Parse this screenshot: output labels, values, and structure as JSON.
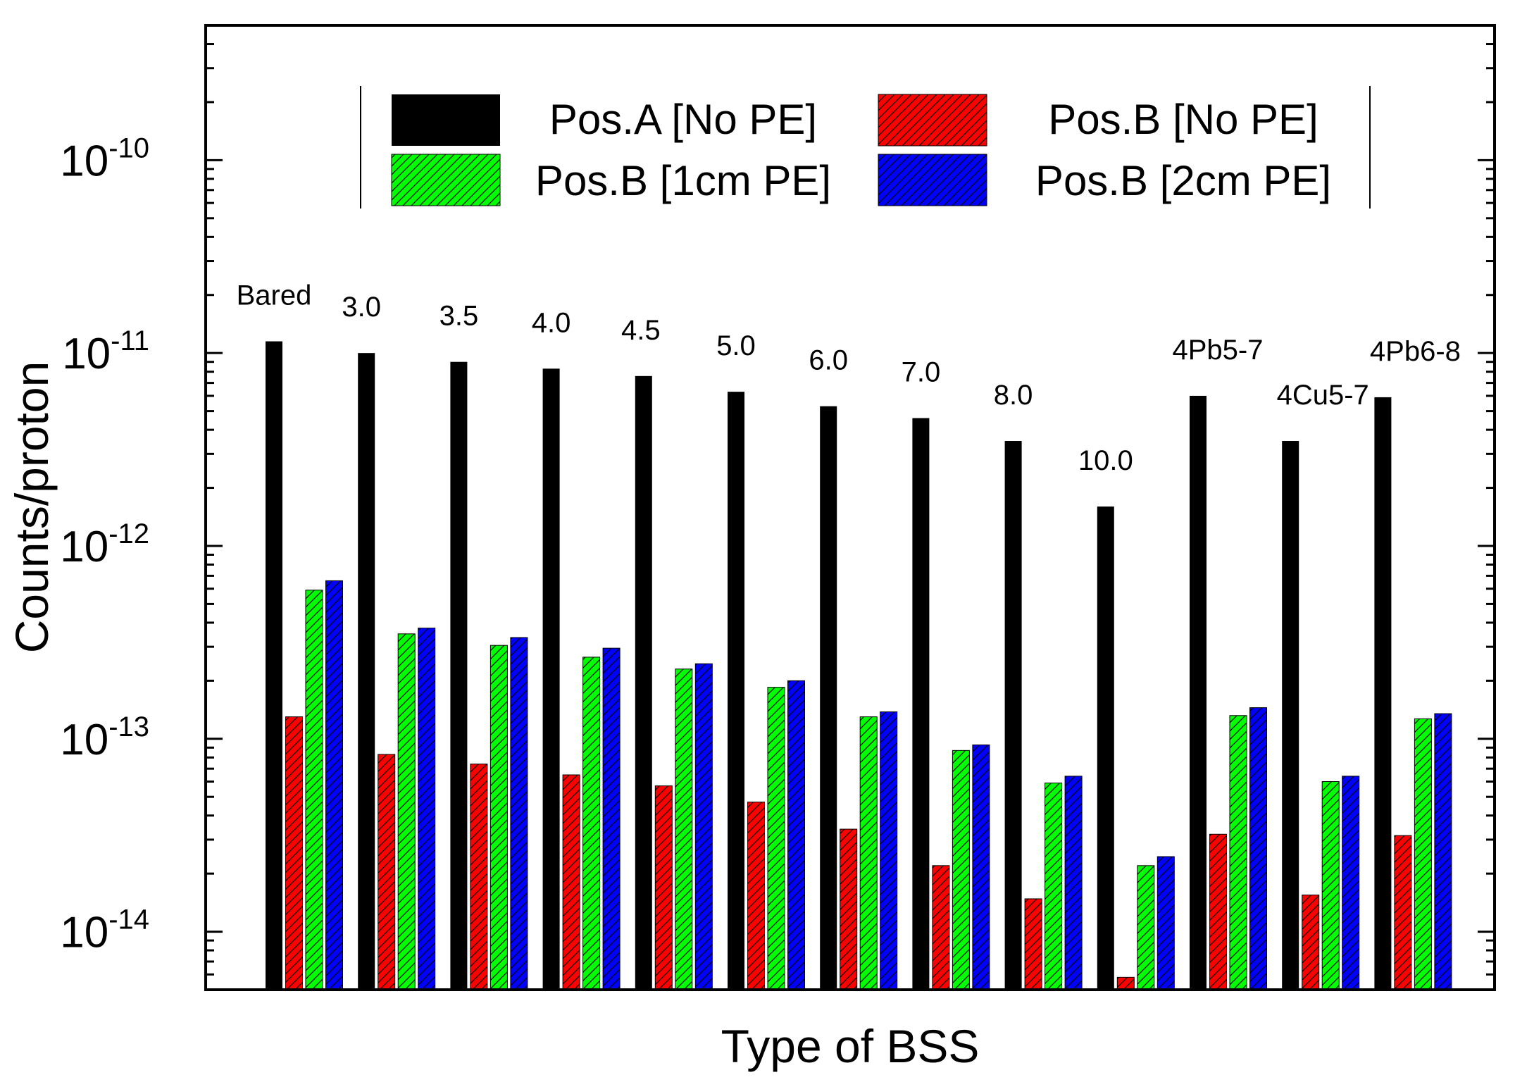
{
  "chart_data": {
    "type": "bar",
    "scale": "log",
    "ylim": [
      5e-15,
      5e-10
    ],
    "xlabel": "Type of BSS",
    "ylabel": "Counts/proton",
    "ytick_values": [
      1e-14,
      1e-13,
      1e-12,
      1e-11,
      1e-10
    ],
    "ytick_bases": [
      "10",
      "10",
      "10",
      "10",
      "10"
    ],
    "ytick_exponents": [
      "-14",
      "-13",
      "-12",
      "-11",
      "-10"
    ],
    "legend_position": "top-center",
    "categories": [
      "Bared",
      "3.0",
      "3.5",
      "4.0",
      "4.5",
      "5.0",
      "6.0",
      "7.0",
      "8.0",
      "10.0",
      "4Pb5-7",
      "4Cu5-7",
      "4Pb6-8"
    ],
    "series": [
      {
        "name": "Pos.A [No PE]",
        "color": "#000000",
        "hatched": false,
        "values": [
          1.15e-11,
          1e-11,
          9e-12,
          8.3e-12,
          7.6e-12,
          6.3e-12,
          5.3e-12,
          4.6e-12,
          3.5e-12,
          1.6e-12,
          6e-12,
          3.5e-12,
          5.9e-12
        ]
      },
      {
        "name": "Pos.B [No PE]",
        "color": "#ff0000",
        "hatched": true,
        "values": [
          1.3e-13,
          8.3e-14,
          7.4e-14,
          6.5e-14,
          5.7e-14,
          4.7e-14,
          3.4e-14,
          2.2e-14,
          1.48e-14,
          5.8e-15,
          3.2e-14,
          1.55e-14,
          3.15e-14
        ]
      },
      {
        "name": "Pos.B [1cm PE]",
        "color": "#00ff00",
        "hatched": true,
        "values": [
          5.9e-13,
          3.5e-13,
          3.05e-13,
          2.65e-13,
          2.3e-13,
          1.85e-13,
          1.3e-13,
          8.7e-14,
          5.9e-14,
          2.2e-14,
          1.32e-13,
          6e-14,
          1.27e-13
        ]
      },
      {
        "name": "Pos.B [2cm PE]",
        "color": "#0000ff",
        "hatched": true,
        "values": [
          6.6e-13,
          3.75e-13,
          3.35e-13,
          2.95e-13,
          2.45e-13,
          2e-13,
          1.38e-13,
          9.3e-14,
          6.4e-14,
          2.45e-14,
          1.45e-13,
          6.4e-14,
          1.35e-13
        ]
      }
    ]
  }
}
